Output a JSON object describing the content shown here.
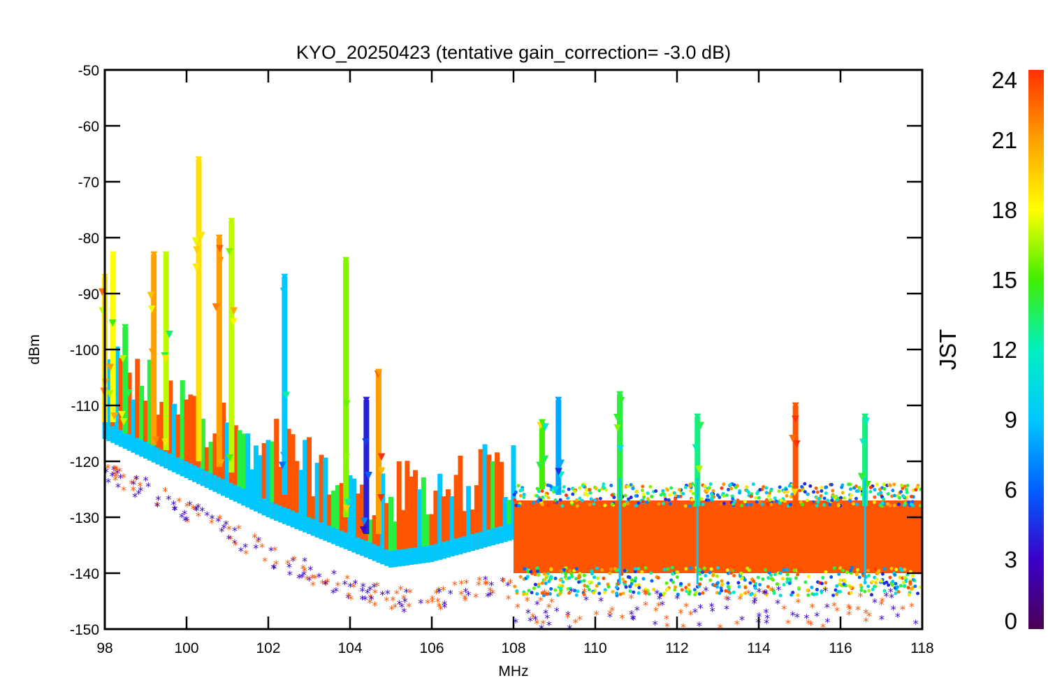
{
  "chart_data": {
    "type": "scatter",
    "title": "KYO_20250423 (tentative gain_correction= -3.0 dB)",
    "xlabel": "MHz",
    "ylabel": "dBm",
    "xlim": [
      98,
      118
    ],
    "ylim": [
      -150,
      -50
    ],
    "xticks": [
      98,
      100,
      102,
      104,
      106,
      108,
      110,
      112,
      114,
      116,
      118
    ],
    "yticks": [
      -50,
      -60,
      -70,
      -80,
      -90,
      -100,
      -110,
      -120,
      -130,
      -140,
      -150
    ],
    "marker": "asterisk",
    "grid": false,
    "colorbar": {
      "label": "JST",
      "range": [
        0,
        24
      ],
      "ticks": [
        24,
        21,
        18,
        15,
        12,
        9,
        6,
        3,
        0
      ],
      "colormap": "rainbow",
      "colors": [
        "#4b0055",
        "#3a00c8",
        "#0060ff",
        "#00c8ff",
        "#00f0c0",
        "#40ee00",
        "#ffff00",
        "#ffa000",
        "#ff3000"
      ]
    },
    "noise_floor": [
      {
        "x": 98,
        "y": -115
      },
      {
        "x": 100,
        "y": -122
      },
      {
        "x": 102,
        "y": -129
      },
      {
        "x": 104,
        "y": -135
      },
      {
        "x": 105,
        "y": -138
      },
      {
        "x": 106,
        "y": -137
      },
      {
        "x": 107,
        "y": -135
      },
      {
        "x": 108,
        "y": -133
      },
      {
        "x": 110,
        "y": -133
      },
      {
        "x": 112,
        "y": -133
      },
      {
        "x": 114,
        "y": -133
      },
      {
        "x": 116,
        "y": -133
      },
      {
        "x": 118,
        "y": -133
      }
    ],
    "lower_outliers": [
      {
        "x": 98,
        "y": -120
      },
      {
        "x": 100,
        "y": -127
      },
      {
        "x": 102,
        "y": -135
      },
      {
        "x": 104,
        "y": -141
      },
      {
        "x": 105,
        "y": -143
      },
      {
        "x": 106,
        "y": -143
      },
      {
        "x": 107,
        "y": -141
      },
      {
        "x": 108,
        "y": -141
      }
    ],
    "peaks": [
      {
        "freq": 98.0,
        "top": -87,
        "base": -113,
        "hour": 19
      },
      {
        "freq": 98.2,
        "top": -83,
        "base": -113,
        "hour": 18
      },
      {
        "freq": 98.5,
        "top": -96,
        "base": -115,
        "hour": 14
      },
      {
        "freq": 99.2,
        "top": -83,
        "base": -117,
        "hour": 21
      },
      {
        "freq": 99.5,
        "top": -83,
        "base": -118,
        "hour": 17
      },
      {
        "freq": 100.3,
        "top": -66,
        "base": -120,
        "hour": 19
      },
      {
        "freq": 100.8,
        "top": -80,
        "base": -121,
        "hour": 21
      },
      {
        "freq": 101.1,
        "top": -77,
        "base": -122,
        "hour": 17
      },
      {
        "freq": 102.4,
        "top": -87,
        "base": -126,
        "hour": 9
      },
      {
        "freq": 103.9,
        "top": -84,
        "base": -130,
        "hour": 16
      },
      {
        "freq": 104.4,
        "top": -109,
        "base": -133,
        "hour": 4
      },
      {
        "freq": 104.7,
        "top": -104,
        "base": -133,
        "hour": 21
      },
      {
        "freq": 108.7,
        "top": -113,
        "base": -125,
        "hour": 15
      },
      {
        "freq": 109.1,
        "top": -109,
        "base": -126,
        "hour": 8
      },
      {
        "freq": 110.6,
        "top": -108,
        "base": -127,
        "hour": 14
      },
      {
        "freq": 112.5,
        "top": -112,
        "base": -128,
        "hour": 13
      },
      {
        "freq": 114.9,
        "top": -110,
        "base": -128,
        "hour": 23
      },
      {
        "freq": 116.6,
        "top": -112,
        "base": -128,
        "hour": 13
      }
    ],
    "dense_band": {
      "x": [
        108,
        118
      ],
      "y": [
        -143,
        -127
      ],
      "hour": 23
    }
  }
}
